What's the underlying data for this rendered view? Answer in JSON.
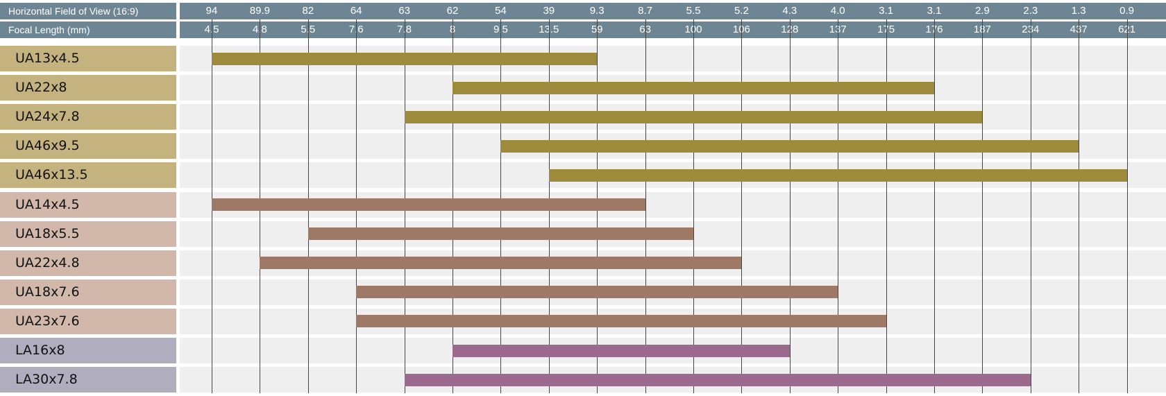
{
  "chart_data": {
    "type": "bar",
    "orientation": "horizontal-range",
    "header_rows": [
      {
        "label": "Horizontal Field of View (16:9)",
        "ticks": [
          "94",
          "89.9",
          "82",
          "64",
          "63",
          "62",
          "54",
          "39",
          "9.3",
          "8.7",
          "5.5",
          "5.2",
          "4.3",
          "4.0",
          "3.1",
          "3.1",
          "2.9",
          "2.3",
          "1.3",
          "0.9"
        ]
      },
      {
        "label": "Focal Length (mm)",
        "ticks": [
          "4.5",
          "4.8",
          "5.5",
          "7.6",
          "7.8",
          "8",
          "9.5",
          "13.5",
          "59",
          "63",
          "100",
          "106",
          "128",
          "137",
          "175",
          "176",
          "187",
          "234",
          "437",
          "621"
        ]
      }
    ],
    "grid": true,
    "series": [
      {
        "name": "UA13x4.5",
        "start": 4.5,
        "end": 59,
        "group": "UA-a"
      },
      {
        "name": "UA22x8",
        "start": 8,
        "end": 176,
        "group": "UA-a"
      },
      {
        "name": "UA24x7.8",
        "start": 7.8,
        "end": 187,
        "group": "UA-a"
      },
      {
        "name": "UA46x9.5",
        "start": 9.5,
        "end": 437,
        "group": "UA-a"
      },
      {
        "name": "UA46x13.5",
        "start": 13.5,
        "end": 621,
        "group": "UA-a"
      },
      {
        "name": "UA14x4.5",
        "start": 4.5,
        "end": 63,
        "group": "UA-b"
      },
      {
        "name": "UA18x5.5",
        "start": 5.5,
        "end": 100,
        "group": "UA-b"
      },
      {
        "name": "UA22x4.8",
        "start": 4.8,
        "end": 106,
        "group": "UA-b"
      },
      {
        "name": "UA18x7.6",
        "start": 7.6,
        "end": 137,
        "group": "UA-b"
      },
      {
        "name": "UA23x7.6",
        "start": 7.6,
        "end": 175,
        "group": "UA-b"
      },
      {
        "name": "LA16x8",
        "start": 8,
        "end": 128,
        "group": "LA"
      },
      {
        "name": "LA30x7.8",
        "start": 7.8,
        "end": 234,
        "group": "LA"
      }
    ]
  },
  "colors": {
    "header": "#6e8694",
    "UA-a": {
      "label": "#c4b37f",
      "bar": "#9d8a3a"
    },
    "UA-b": {
      "label": "#d1b8aa",
      "bar": "#9e7a66"
    },
    "LA": {
      "label": "#b0adbf",
      "bar": "#9c6a8c"
    }
  }
}
